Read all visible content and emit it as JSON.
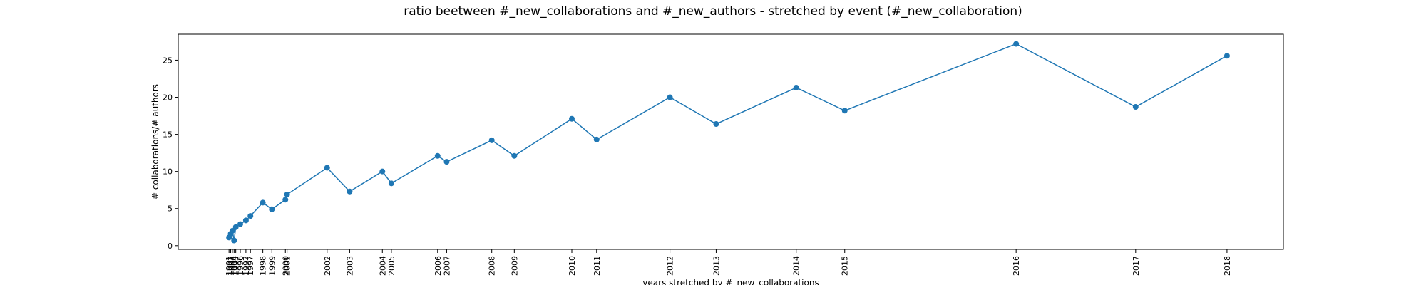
{
  "chart_data": {
    "type": "line",
    "title": "ratio beetween #_new_collaborations and #_new_authors - stretched by event (#_new_collaboration)",
    "xlabel": "years stretched by #_new_collaborations",
    "ylabel": "# collaborations/# authors",
    "ylim": [
      -0.5,
      28.5
    ],
    "y_ticks": [
      0,
      5,
      10,
      15,
      20,
      25
    ],
    "grid": false,
    "series_color": "#1f77b4",
    "points": [
      {
        "year": "1991",
        "x": 0.0,
        "y": 1.1
      },
      {
        "year": "1992",
        "x": 0.15,
        "y": 1.6
      },
      {
        "year": "1993",
        "x": 0.3,
        "y": 2.0
      },
      {
        "year": "1994",
        "x": 0.45,
        "y": 0.7
      },
      {
        "year": "1995",
        "x": 0.6,
        "y": 2.5
      },
      {
        "year": "1996",
        "x": 1.0,
        "y": 2.9
      },
      {
        "year": "1997a",
        "x": 1.5,
        "y": 3.4
      },
      {
        "year": "1997",
        "x": 1.9,
        "y": 4.0
      },
      {
        "year": "1998",
        "x": 3.0,
        "y": 5.8
      },
      {
        "year": "1999",
        "x": 3.8,
        "y": 4.9
      },
      {
        "year": "2000",
        "x": 5.0,
        "y": 6.2
      },
      {
        "year": "2001",
        "x": 5.15,
        "y": 6.9
      },
      {
        "year": "2002",
        "x": 8.7,
        "y": 10.5
      },
      {
        "year": "2003",
        "x": 10.7,
        "y": 7.3
      },
      {
        "year": "2004",
        "x": 13.6,
        "y": 10.0
      },
      {
        "year": "2005",
        "x": 14.4,
        "y": 8.4
      },
      {
        "year": "2006",
        "x": 18.5,
        "y": 12.1
      },
      {
        "year": "2007",
        "x": 19.3,
        "y": 11.3
      },
      {
        "year": "2008",
        "x": 23.3,
        "y": 14.2
      },
      {
        "year": "2009",
        "x": 25.3,
        "y": 12.1
      },
      {
        "year": "2010",
        "x": 30.4,
        "y": 17.1
      },
      {
        "year": "2011",
        "x": 32.6,
        "y": 14.3
      },
      {
        "year": "2012",
        "x": 39.1,
        "y": 20.0
      },
      {
        "year": "2013",
        "x": 43.2,
        "y": 16.4
      },
      {
        "year": "2014",
        "x": 50.3,
        "y": 21.3
      },
      {
        "year": "2015",
        "x": 54.6,
        "y": 18.2
      },
      {
        "year": "2016",
        "x": 69.8,
        "y": 27.2
      },
      {
        "year": "2017",
        "x": 80.4,
        "y": 18.7
      },
      {
        "year": "2018",
        "x": 88.5,
        "y": 25.6
      }
    ],
    "x_tick_labels": [
      "1991",
      "1992",
      "1993",
      "1994",
      "1995",
      "1996",
      "1997",
      "1997",
      "1998",
      "1999",
      "2000",
      "2001",
      "2002",
      "2003",
      "2004",
      "2005",
      "2006",
      "2007",
      "2008",
      "2009",
      "2010",
      "2011",
      "2012",
      "2013",
      "2014",
      "2015",
      "2016",
      "2017",
      "2018"
    ]
  }
}
